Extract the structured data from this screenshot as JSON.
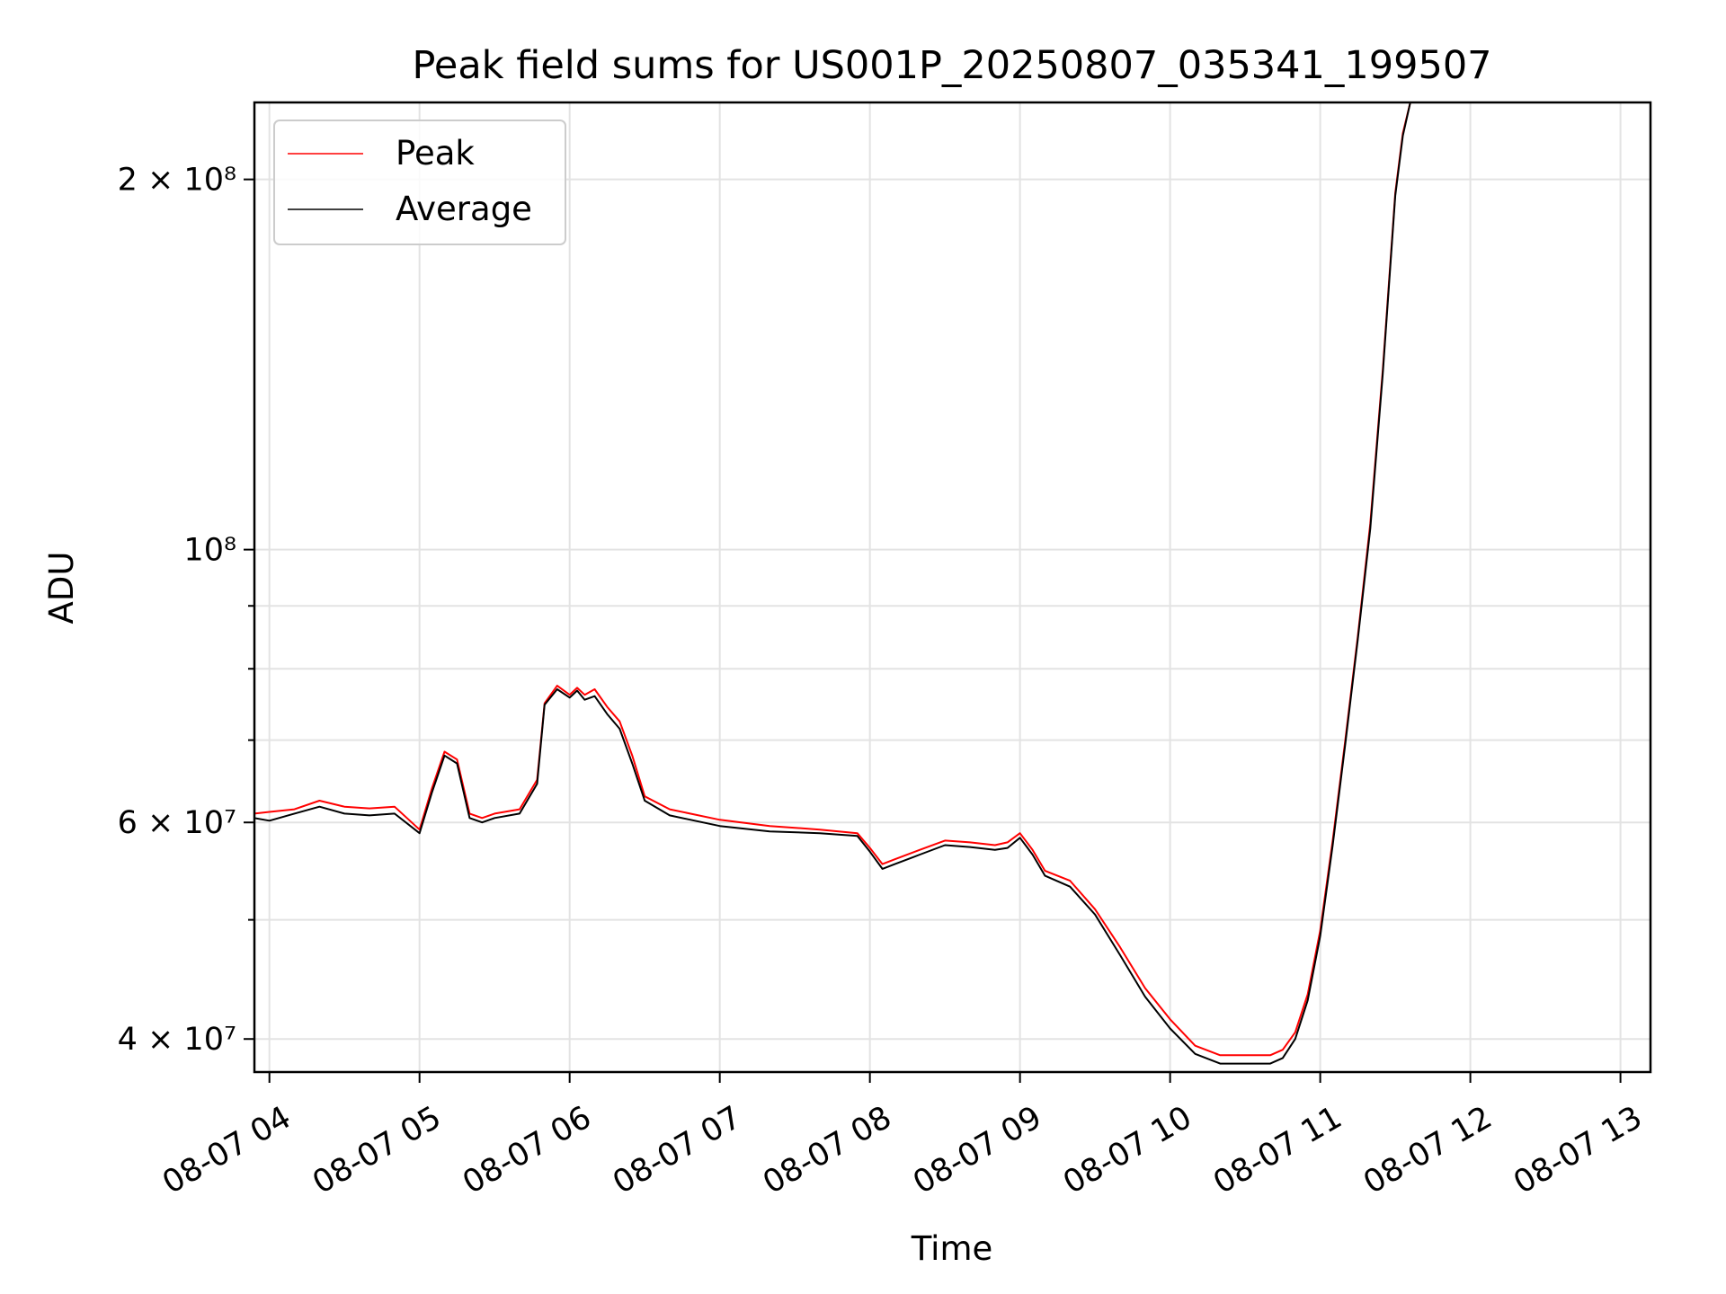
{
  "chart_data": {
    "type": "line",
    "title": "Peak field sums for US001P_20250807_035341_199507",
    "xlabel": "Time",
    "ylabel": "ADU",
    "y_scale": "log",
    "grid": true,
    "legend_position": "top-left",
    "x_range": [
      "2025-08-07 03:54",
      "2025-08-07 13:12"
    ],
    "y_range": [
      37600000,
      231000000
    ],
    "x_ticks": [
      {
        "value": "2025-08-07 04:00",
        "label": "08-07 04"
      },
      {
        "value": "2025-08-07 05:00",
        "label": "08-07 05"
      },
      {
        "value": "2025-08-07 06:00",
        "label": "08-07 06"
      },
      {
        "value": "2025-08-07 07:00",
        "label": "08-07 07"
      },
      {
        "value": "2025-08-07 08:00",
        "label": "08-07 08"
      },
      {
        "value": "2025-08-07 09:00",
        "label": "08-07 09"
      },
      {
        "value": "2025-08-07 10:00",
        "label": "08-07 10"
      },
      {
        "value": "2025-08-07 11:00",
        "label": "08-07 11"
      },
      {
        "value": "2025-08-07 12:00",
        "label": "08-07 12"
      },
      {
        "value": "2025-08-07 13:00",
        "label": "08-07 13"
      }
    ],
    "y_ticks_major": [
      {
        "value": 40000000,
        "label": "4 × 10⁷"
      },
      {
        "value": 60000000,
        "label": "6 × 10⁷"
      },
      {
        "value": 100000000,
        "label": "10⁸"
      },
      {
        "value": 200000000,
        "label": "2 × 10⁸"
      }
    ],
    "y_ticks_minor": [
      50000000,
      70000000,
      80000000,
      90000000
    ],
    "series": [
      {
        "name": "Peak",
        "color": "#ff0000",
        "x": [
          "2025-08-07 03:54",
          "2025-08-07 04:00",
          "2025-08-07 04:10",
          "2025-08-07 04:20",
          "2025-08-07 04:30",
          "2025-08-07 04:40",
          "2025-08-07 04:50",
          "2025-08-07 05:00",
          "2025-08-07 05:05",
          "2025-08-07 05:10",
          "2025-08-07 05:15",
          "2025-08-07 05:20",
          "2025-08-07 05:25",
          "2025-08-07 05:30",
          "2025-08-07 05:40",
          "2025-08-07 05:47",
          "2025-08-07 05:50",
          "2025-08-07 05:55",
          "2025-08-07 06:00",
          "2025-08-07 06:03",
          "2025-08-07 06:06",
          "2025-08-07 06:10",
          "2025-08-07 06:15",
          "2025-08-07 06:20",
          "2025-08-07 06:25",
          "2025-08-07 06:30",
          "2025-08-07 06:40",
          "2025-08-07 07:00",
          "2025-08-07 07:20",
          "2025-08-07 07:40",
          "2025-08-07 07:55",
          "2025-08-07 08:00",
          "2025-08-07 08:05",
          "2025-08-07 08:10",
          "2025-08-07 08:20",
          "2025-08-07 08:30",
          "2025-08-07 08:40",
          "2025-08-07 08:50",
          "2025-08-07 08:55",
          "2025-08-07 09:00",
          "2025-08-07 09:05",
          "2025-08-07 09:10",
          "2025-08-07 09:20",
          "2025-08-07 09:30",
          "2025-08-07 09:40",
          "2025-08-07 09:50",
          "2025-08-07 10:00",
          "2025-08-07 10:10",
          "2025-08-07 10:20",
          "2025-08-07 10:30",
          "2025-08-07 10:40",
          "2025-08-07 10:45",
          "2025-08-07 10:50",
          "2025-08-07 10:55",
          "2025-08-07 11:00",
          "2025-08-07 11:05",
          "2025-08-07 11:10",
          "2025-08-07 11:15",
          "2025-08-07 11:20",
          "2025-08-07 11:25",
          "2025-08-07 11:30",
          "2025-08-07 11:33",
          "2025-08-07 11:36"
        ],
        "y": [
          61000000,
          61200000,
          61500000,
          62500000,
          61800000,
          61600000,
          61800000,
          59200000,
          64000000,
          68500000,
          67500000,
          61000000,
          60500000,
          61000000,
          61500000,
          65000000,
          75000000,
          77500000,
          76200000,
          77200000,
          76200000,
          77000000,
          74500000,
          72500000,
          68000000,
          63000000,
          61500000,
          60300000,
          59600000,
          59200000,
          58800000,
          57200000,
          55500000,
          56000000,
          57000000,
          58000000,
          57800000,
          57500000,
          57800000,
          58800000,
          57000000,
          54800000,
          53800000,
          51000000,
          47500000,
          44000000,
          41500000,
          39500000,
          38800000,
          38800000,
          38800000,
          39200000,
          40500000,
          43500000,
          49000000,
          58000000,
          70000000,
          85000000,
          105000000,
          140000000,
          195000000,
          218000000,
          231000000
        ]
      },
      {
        "name": "Average",
        "color": "#000000",
        "x": [
          "2025-08-07 03:54",
          "2025-08-07 04:00",
          "2025-08-07 04:10",
          "2025-08-07 04:20",
          "2025-08-07 04:30",
          "2025-08-07 04:40",
          "2025-08-07 04:50",
          "2025-08-07 05:00",
          "2025-08-07 05:05",
          "2025-08-07 05:10",
          "2025-08-07 05:15",
          "2025-08-07 05:20",
          "2025-08-07 05:25",
          "2025-08-07 05:30",
          "2025-08-07 05:40",
          "2025-08-07 05:47",
          "2025-08-07 05:50",
          "2025-08-07 05:55",
          "2025-08-07 06:00",
          "2025-08-07 06:03",
          "2025-08-07 06:06",
          "2025-08-07 06:10",
          "2025-08-07 06:15",
          "2025-08-07 06:20",
          "2025-08-07 06:25",
          "2025-08-07 06:30",
          "2025-08-07 06:40",
          "2025-08-07 07:00",
          "2025-08-07 07:20",
          "2025-08-07 07:40",
          "2025-08-07 07:55",
          "2025-08-07 08:00",
          "2025-08-07 08:05",
          "2025-08-07 08:10",
          "2025-08-07 08:20",
          "2025-08-07 08:30",
          "2025-08-07 08:40",
          "2025-08-07 08:50",
          "2025-08-07 08:55",
          "2025-08-07 09:00",
          "2025-08-07 09:05",
          "2025-08-07 09:10",
          "2025-08-07 09:20",
          "2025-08-07 09:30",
          "2025-08-07 09:40",
          "2025-08-07 09:50",
          "2025-08-07 10:00",
          "2025-08-07 10:10",
          "2025-08-07 10:20",
          "2025-08-07 10:30",
          "2025-08-07 10:40",
          "2025-08-07 10:45",
          "2025-08-07 10:50",
          "2025-08-07 10:55",
          "2025-08-07 11:00",
          "2025-08-07 11:05",
          "2025-08-07 11:10",
          "2025-08-07 11:15",
          "2025-08-07 11:20",
          "2025-08-07 11:25",
          "2025-08-07 11:30",
          "2025-08-07 11:33",
          "2025-08-07 11:36"
        ],
        "y": [
          60500000,
          60200000,
          61000000,
          61800000,
          61000000,
          60800000,
          61000000,
          58800000,
          63500000,
          68000000,
          67000000,
          60500000,
          60000000,
          60500000,
          61000000,
          64500000,
          74800000,
          77000000,
          75800000,
          76800000,
          75500000,
          76000000,
          73500000,
          71500000,
          67000000,
          62500000,
          60800000,
          59600000,
          59000000,
          58800000,
          58500000,
          56800000,
          55000000,
          55500000,
          56500000,
          57500000,
          57300000,
          57000000,
          57200000,
          58300000,
          56500000,
          54300000,
          53200000,
          50500000,
          46800000,
          43300000,
          40800000,
          38900000,
          38200000,
          38200000,
          38200000,
          38600000,
          40000000,
          43000000,
          48500000,
          57500000,
          69500000,
          84500000,
          104000000,
          139000000,
          194000000,
          217000000,
          231000000
        ]
      }
    ]
  }
}
